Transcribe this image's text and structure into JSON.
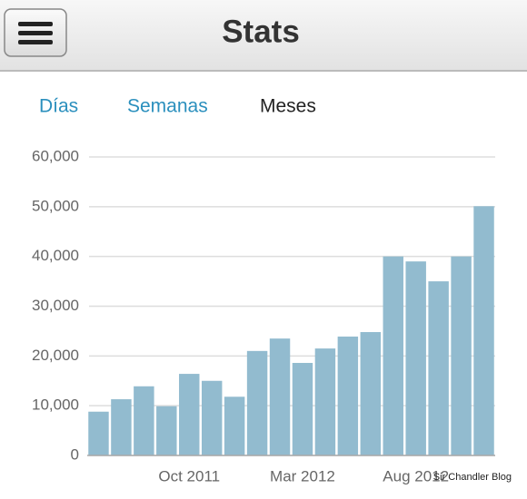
{
  "header": {
    "title": "Stats"
  },
  "tabs": [
    "Días",
    "Semanas",
    "Meses"
  ],
  "watermark": "Sir Chandler Blog",
  "chart_data": {
    "type": "bar",
    "categories": [
      null,
      null,
      null,
      null,
      "Oct 2011",
      null,
      null,
      null,
      null,
      "Mar 2012",
      null,
      null,
      null,
      null,
      "Aug 2012",
      null,
      null,
      null
    ],
    "values": [
      8800,
      11300,
      13900,
      9900,
      16400,
      15000,
      11800,
      21000,
      23500,
      18600,
      21500,
      23900,
      24800,
      40000,
      39000,
      35000,
      40000,
      50100
    ],
    "color": "#92bbcf",
    "ylim": [
      0,
      60000
    ],
    "yticks": [
      0,
      {
        "value": 10000,
        "label": "10,000"
      },
      {
        "value": 20000,
        "label": "20,000"
      },
      {
        "value": 30000,
        "label": "30,000"
      },
      {
        "value": 40000,
        "label": "40,000"
      },
      {
        "value": 50000,
        "label": "50,000"
      },
      {
        "value": 60000,
        "label": "60,000"
      }
    ],
    "grid": true
  }
}
